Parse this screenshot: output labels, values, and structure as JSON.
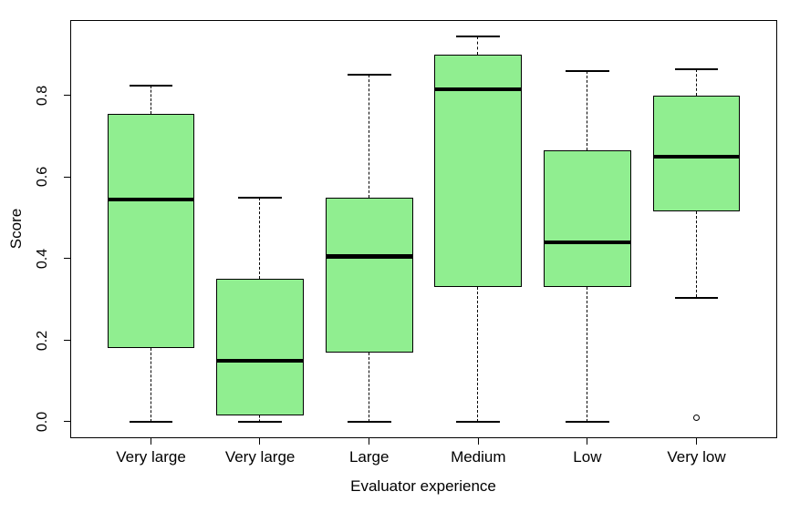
{
  "figure": {
    "background": "#ffffff"
  },
  "chart_data": {
    "type": "boxplot",
    "title": "",
    "xlabel": "Evaluator experience",
    "ylabel": "Score",
    "categories": [
      "Very large",
      "Very large",
      "Large",
      "Medium",
      "Low",
      "Very low"
    ],
    "y_ticks": [
      {
        "label": "0.0",
        "value": 0.0
      },
      {
        "label": "0.2",
        "value": 0.2
      },
      {
        "label": "0.4",
        "value": 0.4
      },
      {
        "label": "0.6",
        "value": 0.6
      },
      {
        "label": "0.8",
        "value": 0.8
      }
    ],
    "ylim": [
      -0.04,
      0.985
    ],
    "grid": false,
    "legend": false,
    "box_fill": "#90ee90",
    "box_border": "#000000",
    "median_color": "#000000",
    "series": [
      {
        "category": "Very large",
        "min": 0.0,
        "q1": 0.18,
        "median": 0.545,
        "q3": 0.755,
        "max": 0.825,
        "outliers": []
      },
      {
        "category": "Very large",
        "min": 0.0,
        "q1": 0.015,
        "median": 0.15,
        "q3": 0.35,
        "max": 0.55,
        "outliers": []
      },
      {
        "category": "Large",
        "min": 0.0,
        "q1": 0.17,
        "median": 0.405,
        "q3": 0.55,
        "max": 0.85,
        "outliers": []
      },
      {
        "category": "Medium",
        "min": 0.0,
        "q1": 0.33,
        "median": 0.815,
        "q3": 0.9,
        "max": 0.945,
        "outliers": []
      },
      {
        "category": "Low",
        "min": 0.0,
        "q1": 0.33,
        "median": 0.44,
        "q3": 0.665,
        "max": 0.86,
        "outliers": []
      },
      {
        "category": "Very low",
        "min": 0.305,
        "q1": 0.515,
        "median": 0.65,
        "q3": 0.8,
        "max": 0.865,
        "outliers": [
          0.01
        ]
      }
    ]
  }
}
